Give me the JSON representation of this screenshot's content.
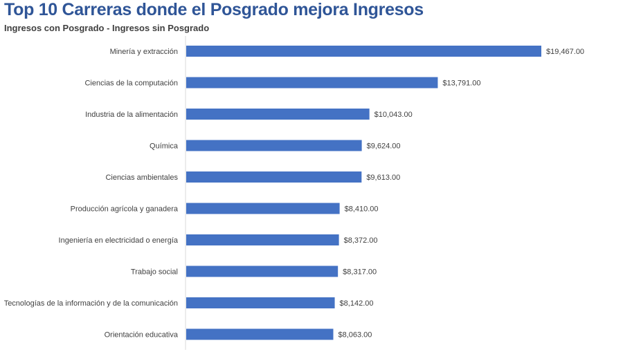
{
  "chart_data": {
    "type": "bar",
    "orientation": "horizontal",
    "title": "Top 10 Carreras donde el Posgrado mejora Ingresos",
    "subtitle": "Ingresos con Posgrado - Ingresos sin Posgrado",
    "categories": [
      "Minería y extracción",
      "Ciencias de la computación",
      "Industria de la alimentación",
      "Química",
      "Ciencias ambientales",
      "Producción agrícola y ganadera",
      "Ingeniería en electricidad o energía",
      "Trabajo social",
      "Tecnologías de la información y de la comunicación",
      "Orientación educativa"
    ],
    "values": [
      19467,
      13791,
      10043,
      9624,
      9613,
      8410,
      8372,
      8317,
      8142,
      8063
    ],
    "value_labels": [
      "$19,467.00",
      "$13,791.00",
      "$10,043.00",
      "$9,624.00",
      "$9,613.00",
      "$8,410.00",
      "$8,372.00",
      "$8,317.00",
      "$8,142.00",
      "$8,063.00"
    ],
    "xlim": [
      0,
      19467
    ],
    "grid": false,
    "legend": "none",
    "bar_color": "#4472c4"
  }
}
